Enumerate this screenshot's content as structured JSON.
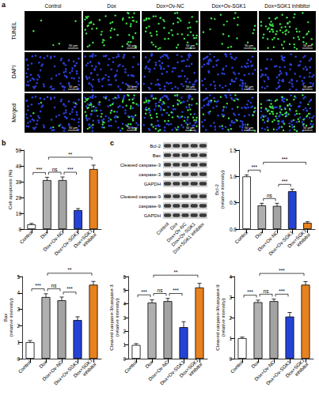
{
  "figure_a": {
    "letter": "a",
    "columns": [
      "Control",
      "Dox",
      "Dox+Ov-NC",
      "Dox+Ov-SGK1",
      "Dox+SGK1 inhibitor"
    ],
    "rows": [
      "TUNEL",
      "DAPI",
      "Merged"
    ],
    "scale_bar": "50 μm"
  },
  "blot": {
    "letter": "c",
    "rows": [
      "Bcl-2",
      "Bax",
      "Cleaved caspase-3",
      "caspase-3",
      "GAPDH",
      "Cleaved caspase-9",
      "caspase-9",
      "GAPDH"
    ],
    "lanes": [
      "Control",
      "Dox",
      "Dox+Ov-NC",
      "Dox+Ov-SGK1",
      "Dox+SGK1 inhibitor"
    ]
  },
  "chart_data": [
    {
      "type": "bar",
      "letter": "b",
      "y_label": [
        "Cell apoptosis (%)"
      ],
      "categories": [
        "Control",
        "Dox",
        "Dox+Ov-NC",
        "Dox+Ov-SGK1",
        "Dox+SGK1 inhibitor"
      ],
      "values": [
        3,
        31,
        31,
        12,
        38
      ],
      "errors": [
        0.6,
        1.8,
        2,
        1,
        2.5
      ],
      "colors": [
        "#ffffff",
        "#b0b0b0",
        "#a3a3a3",
        "#2443d6",
        "#e8821e"
      ],
      "ylim": [
        0,
        50
      ],
      "yticks": [
        0,
        10,
        20,
        30,
        40,
        50
      ],
      "grid": false,
      "significance": [
        {
          "pair": [
            "Control",
            "Dox"
          ],
          "label": "***"
        },
        {
          "pair": [
            "Dox",
            "Dox+Ov-NC"
          ],
          "label": "ns"
        },
        {
          "pair": [
            "Dox+Ov-NC",
            "Dox+Ov-SGK1"
          ],
          "label": "***"
        },
        {
          "pair": [
            "Dox",
            "Dox+SGK1 inhibitor"
          ],
          "label": "**"
        }
      ]
    },
    {
      "type": "bar",
      "y_label": [
        "Bcl-2",
        "(relative intensity)"
      ],
      "categories": [
        "Control",
        "Dox",
        "Dox+Ov-NC",
        "Dox+Ov-SGK1",
        "Dox+SGK1 inhibitor"
      ],
      "values": [
        1.0,
        0.45,
        0.44,
        0.72,
        0.12
      ],
      "errors": [
        0.03,
        0.04,
        0.05,
        0.04,
        0.02
      ],
      "colors": [
        "#ffffff",
        "#b0b0b0",
        "#a3a3a3",
        "#2443d6",
        "#e8821e"
      ],
      "ylim": [
        0,
        1.5
      ],
      "yticks": [
        {
          "value": 0,
          "label": "0.0"
        },
        0.5,
        {
          "value": 1,
          "label": "1.0"
        },
        1.5
      ],
      "grid": false,
      "significance": [
        {
          "pair": [
            "Control",
            "Dox"
          ],
          "label": "***"
        },
        {
          "pair": [
            "Dox",
            "Dox+Ov-NC"
          ],
          "label": "ns"
        },
        {
          "pair": [
            "Dox+Ov-NC",
            "Dox+Ov-SGK1"
          ],
          "label": "***"
        },
        {
          "pair": [
            "Dox",
            "Dox+SGK1 inhibitor"
          ],
          "label": "***"
        }
      ]
    },
    {
      "type": "bar",
      "y_label": [
        "Bax",
        "(relative intensity)"
      ],
      "categories": [
        "Control",
        "Dox",
        "Dox+Ov-NC",
        "Dox+Ov-SGK1",
        "Dox+SGK1 inhibitor"
      ],
      "values": [
        1.0,
        3.75,
        3.55,
        2.35,
        4.5
      ],
      "errors": [
        0.1,
        0.2,
        0.2,
        0.2,
        0.2
      ],
      "colors": [
        "#ffffff",
        "#b0b0b0",
        "#a3a3a3",
        "#2443d6",
        "#e8821e"
      ],
      "ylim": [
        0,
        5
      ],
      "yticks": [
        0,
        1,
        2,
        3,
        4,
        5
      ],
      "grid": false,
      "significance": [
        {
          "pair": [
            "Control",
            "Dox"
          ],
          "label": "***"
        },
        {
          "pair": [
            "Dox",
            "Dox+Ov-NC"
          ],
          "label": "ns"
        },
        {
          "pair": [
            "Dox+Ov-NC",
            "Dox+Ov-SGK1"
          ],
          "label": "***"
        },
        {
          "pair": [
            "Dox",
            "Dox+SGK1 inhibitor"
          ],
          "label": "**"
        }
      ]
    },
    {
      "type": "bar",
      "y_label": [
        "Cleaved caspase-3/caspase-3",
        "(relative intensity)"
      ],
      "categories": [
        "Control",
        "Dox",
        "Dox+Ov-NC",
        "Dox+Ov-SGK1",
        "Dox+SGK1 inhibitor"
      ],
      "values": [
        1.0,
        4.1,
        4.2,
        2.3,
        5.2
      ],
      "errors": [
        0.1,
        0.2,
        0.2,
        0.4,
        0.3
      ],
      "colors": [
        "#ffffff",
        "#b0b0b0",
        "#a3a3a3",
        "#2443d6",
        "#e8821e"
      ],
      "ylim": [
        0,
        6
      ],
      "yticks": [
        0,
        1,
        2,
        3,
        4,
        5,
        6
      ],
      "grid": false,
      "significance": [
        {
          "pair": [
            "Control",
            "Dox"
          ],
          "label": "***"
        },
        {
          "pair": [
            "Dox",
            "Dox+Ov-NC"
          ],
          "label": "ns"
        },
        {
          "pair": [
            "Dox+Ov-NC",
            "Dox+Ov-SGK1"
          ],
          "label": "***"
        },
        {
          "pair": [
            "Dox",
            "Dox+SGK1 inhibitor"
          ],
          "label": "**"
        }
      ]
    },
    {
      "type": "bar",
      "y_label": [
        "Cleaved caspase-9/caspase-9",
        "(relative intensity)"
      ],
      "categories": [
        "Control",
        "Dox",
        "Dox+Ov-NC",
        "Dox+Ov-SGK1",
        "Dox+SGK1 inhibitor"
      ],
      "values": [
        1.0,
        2.75,
        2.8,
        2.05,
        3.6
      ],
      "errors": [
        0.05,
        0.1,
        0.1,
        0.2,
        0.15
      ],
      "colors": [
        "#ffffff",
        "#b0b0b0",
        "#a3a3a3",
        "#2443d6",
        "#e8821e"
      ],
      "ylim": [
        0,
        4
      ],
      "yticks": [
        0,
        1,
        2,
        3,
        4
      ],
      "grid": false,
      "significance": [
        {
          "pair": [
            "Control",
            "Dox"
          ],
          "label": "***"
        },
        {
          "pair": [
            "Dox",
            "Dox+Ov-NC"
          ],
          "label": "ns"
        },
        {
          "pair": [
            "Dox+Ov-NC",
            "Dox+Ov-SGK1"
          ],
          "label": "***"
        },
        {
          "pair": [
            "Dox",
            "Dox+SGK1 inhibitor"
          ],
          "label": "***"
        }
      ]
    }
  ]
}
